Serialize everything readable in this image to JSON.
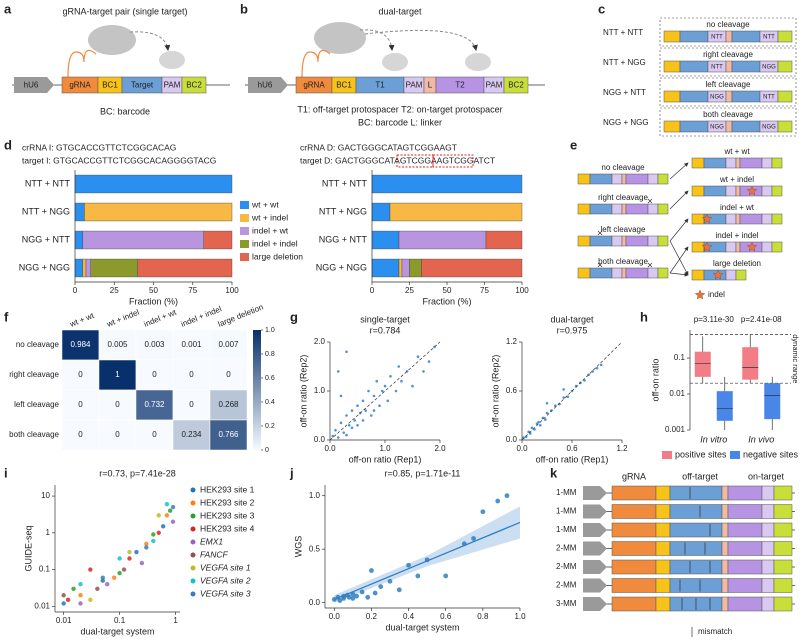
{
  "panels": [
    "a",
    "b",
    "c",
    "d",
    "e",
    "f",
    "g",
    "h",
    "i",
    "j",
    "k"
  ],
  "a": {
    "title": "gRNA-target pair (single target)",
    "parts": [
      "hU6",
      "gRNA",
      "BC1",
      "Target",
      "PAM",
      "BC2"
    ],
    "caption": "BC: barcode"
  },
  "b": {
    "title": "dual-target",
    "parts": [
      "hU6",
      "gRNA",
      "BC1",
      "T1",
      "PAM",
      "L",
      "T2",
      "PAM",
      "BC2"
    ],
    "captions": [
      "T1: off-target protospacer T2: on-target protospacer",
      "BC: barcode L: linker"
    ]
  },
  "c": {
    "rows": [
      {
        "label": "NTT + NTT",
        "caption": "no cleavage",
        "pams": [
          "NTT",
          "NTT"
        ]
      },
      {
        "label": "NTT + NGG",
        "caption": "right cleavage",
        "pams": [
          "NTT",
          "NGG"
        ]
      },
      {
        "label": "NGG + NTT",
        "caption": "left cleavage",
        "pams": [
          "NGG",
          "NTT"
        ]
      },
      {
        "label": "NGG + NGG",
        "caption": "both cleavage",
        "pams": [
          "NGG",
          "NGG"
        ]
      }
    ]
  },
  "d": {
    "sequences": [
      "crRNA I: GTGCACCGTTCTCGGCACAG",
      "target I: GTGCACCGTTCTCGGCACAGGGGTACG",
      "crRNA D: GACTGGGCATAGTCGGAAGT",
      "target D: GACTGGGCATAGTCGGAAGTCGGATCT"
    ]
  },
  "e": {
    "inputs": [
      "no cleavage",
      "right cleavage",
      "left cleavage",
      "both cleavage"
    ],
    "outcomes": [
      "wt + wt",
      "wt + indel",
      "indel + wt",
      "indel + indel",
      "large deletion"
    ],
    "legend": "indel"
  },
  "k": {
    "headers": [
      "gRNA",
      "off-target",
      "on-target"
    ],
    "rows": [
      "1-MM",
      "1-MM",
      "1-MM",
      "2-MM",
      "2-MM",
      "2-MM",
      "3-MM"
    ],
    "legend": "mismatch"
  },
  "chart_data": [
    {
      "type": "bar",
      "orientation": "horizontal",
      "stacked": true,
      "categories": [
        "NTT + NTT",
        "NTT + NGG",
        "NGG + NTT",
        "NGG + NGG"
      ],
      "series": [
        {
          "name": "wt + wt",
          "color": "#2b8ff0",
          "values": [
            100,
            6,
            5,
            5
          ]
        },
        {
          "name": "wt + indel",
          "color": "#f7b844",
          "values": [
            0,
            94,
            0,
            2
          ]
        },
        {
          "name": "indel + wt",
          "color": "#b995e0",
          "values": [
            0,
            0,
            77,
            3
          ]
        },
        {
          "name": "indel + indel",
          "color": "#8c9a2c",
          "values": [
            0,
            0,
            0,
            30
          ]
        },
        {
          "name": "large deletion",
          "color": "#e3644f",
          "values": [
            0,
            0,
            18,
            60
          ]
        }
      ],
      "xlim": [
        0,
        100
      ],
      "xticks": [
        0,
        25,
        50,
        75,
        100
      ],
      "xlabel": "Fraction (%)"
    },
    {
      "type": "bar",
      "orientation": "horizontal",
      "stacked": true,
      "categories": [
        "NTT + NTT",
        "NTT + NGG",
        "NGG + NTT",
        "NGG + NGG"
      ],
      "series": [
        {
          "color": "#2b8ff0",
          "values": [
            100,
            12,
            18,
            18
          ]
        },
        {
          "color": "#f7b844",
          "values": [
            0,
            88,
            0,
            2
          ]
        },
        {
          "color": "#b995e0",
          "values": [
            0,
            0,
            58,
            5
          ]
        },
        {
          "color": "#8c9a2c",
          "values": [
            0,
            0,
            0,
            8
          ]
        },
        {
          "color": "#e3644f",
          "values": [
            0,
            0,
            24,
            67
          ]
        }
      ],
      "xlim": [
        0,
        100
      ],
      "xticks": [
        0,
        25,
        50,
        75,
        100
      ],
      "xlabel": "Fraction (%)"
    },
    {
      "type": "heatmap",
      "rows": [
        "no cleavage",
        "right cleavage",
        "left cleavage",
        "both cleavage"
      ],
      "columns": [
        "wt + wt",
        "wt + indel",
        "indel + wt",
        "indel + indel",
        "large deletion"
      ],
      "values": [
        [
          0.984,
          0.005,
          0.003,
          0.001,
          0.007
        ],
        [
          0,
          1,
          0,
          0,
          0
        ],
        [
          0,
          0,
          0.732,
          0,
          0.268
        ],
        [
          0,
          0,
          0,
          0.234,
          0.766
        ]
      ],
      "clim": [
        0,
        1
      ],
      "cticks": [
        0,
        0.2,
        0.4,
        0.6,
        0.8,
        {
          "value": 1,
          "label": "1.0"
        }
      ],
      "colormap": [
        "#f7fbff",
        "#08306b"
      ]
    },
    {
      "type": "scatter",
      "title": "single-target",
      "subtitle": "r=0.784",
      "color": "#2a7fd4",
      "diagonal": true,
      "x": [
        0.05,
        0.1,
        0.15,
        0.2,
        0.2,
        0.25,
        0.3,
        0.3,
        0.35,
        0.4,
        0.4,
        0.45,
        0.5,
        0.5,
        0.55,
        0.6,
        0.6,
        0.65,
        0.7,
        0.75,
        0.8,
        0.8,
        0.85,
        0.9,
        0.95,
        1.0,
        1.05,
        1.1,
        1.2,
        1.25,
        1.3,
        1.4,
        1.5,
        1.6,
        1.7,
        1.8,
        0.15,
        0.3,
        1.9
      ],
      "values": [
        0.08,
        0.2,
        0.05,
        0.35,
        0.9,
        0.15,
        0.5,
        0.1,
        0.3,
        0.6,
        0.25,
        0.4,
        0.7,
        0.3,
        0.55,
        0.8,
        0.4,
        0.6,
        1.0,
        0.5,
        0.9,
        0.6,
        1.2,
        0.7,
        1.0,
        1.1,
        0.8,
        1.3,
        1.0,
        1.5,
        1.2,
        1.4,
        1.1,
        1.7,
        1.4,
        1.6,
        1.4,
        1.8,
        1.9
      ],
      "xlim": [
        0,
        2
      ],
      "ylim": [
        0,
        2
      ],
      "xticks": [
        {
          "value": 0,
          "label": "0.0"
        },
        {
          "value": 1,
          "label": "1.0"
        },
        {
          "value": 2,
          "label": "2.0"
        }
      ],
      "yticks": [
        {
          "value": 0,
          "label": "0.0"
        },
        {
          "value": 1,
          "label": "1.0"
        },
        {
          "value": 2,
          "label": "2.0"
        }
      ],
      "xlabel": "off-on ratio (Rep1)",
      "ylabel": "off-on ratio (Rep2)"
    },
    {
      "type": "scatter",
      "title": "dual-target",
      "subtitle": "r=0.975",
      "color": "#2a7fd4",
      "diagonal": true,
      "x": [
        0.02,
        0.05,
        0.08,
        0.1,
        0.12,
        0.15,
        0.18,
        0.2,
        0.22,
        0.25,
        0.28,
        0.3,
        0.35,
        0.4,
        0.45,
        0.5,
        0.55,
        0.6,
        0.65,
        0.7,
        0.75,
        0.8,
        0.85,
        0.9,
        0.95,
        0.3,
        0.5
      ],
      "values": [
        0.03,
        0.04,
        0.1,
        0.08,
        0.15,
        0.13,
        0.2,
        0.22,
        0.18,
        0.27,
        0.25,
        0.33,
        0.36,
        0.42,
        0.44,
        0.52,
        0.53,
        0.6,
        0.66,
        0.7,
        0.73,
        0.8,
        0.84,
        0.88,
        0.92,
        0.45,
        0.62
      ],
      "xlim": [
        0,
        1.2
      ],
      "ylim": [
        0,
        1.2
      ],
      "xticks": [
        {
          "value": 0,
          "label": "0.0"
        },
        {
          "value": 0.6,
          "label": "0.6"
        },
        {
          "value": 1.2,
          "label": "1.2"
        }
      ],
      "yticks": [
        {
          "value": 0,
          "label": "0.0"
        },
        {
          "value": 0.6,
          "label": "0.6"
        },
        {
          "value": 1.2,
          "label": "1.2"
        }
      ],
      "xlabel": "off-on ratio (Rep1)",
      "ylabel": "off-on ratio (Rep2)"
    },
    {
      "type": "box",
      "ylog": true,
      "categories": [
        "In vitro",
        "In vivo"
      ],
      "annotations": [
        "p=3.11e-30",
        "p=2.41e-08"
      ],
      "range_label": "dynamic range",
      "range_lines": [
        0.02,
        0.45
      ],
      "series": [
        {
          "name": "positive sites",
          "color": "#f27d86",
          "values": [
            {
              "min": 0.02,
              "q1": 0.03,
              "median": 0.07,
              "q3": 0.15,
              "max": 0.4
            },
            {
              "min": 0.02,
              "q1": 0.025,
              "median": 0.055,
              "q3": 0.2,
              "max": 0.45
            }
          ]
        },
        {
          "name": "negative sites",
          "color": "#4a86e8",
          "values": [
            {
              "min": 0.001,
              "q1": 0.0018,
              "median": 0.004,
              "q3": 0.012,
              "max": 0.03
            },
            {
              "min": 0.001,
              "q1": 0.002,
              "median": 0.009,
              "q3": 0.02,
              "max": 0.03
            }
          ]
        }
      ],
      "ylim": [
        0.001,
        0.6
      ],
      "yticks": [
        0.001,
        0.01,
        0.1
      ],
      "ylabel": "off-on ratio"
    },
    {
      "type": "scatter",
      "title": "r=0.73, p=7.41e-28",
      "xlog": true,
      "ylog": true,
      "xlim": [
        0.007,
        1.2
      ],
      "ylim": [
        0.007,
        20
      ],
      "xticks": [
        0.01,
        0.1,
        1
      ],
      "yticks": [
        0.01,
        0.1,
        1,
        10
      ],
      "xlabel": "dual-target system",
      "ylabel": "GUIDE-seq",
      "series": [
        {
          "name": "HEK293 site 1",
          "color": "#1f77b4",
          "x": [
            0.01,
            0.05,
            0.2,
            0.6
          ],
          "values": [
            0.012,
            0.05,
            0.3,
            1.5
          ]
        },
        {
          "name": "HEK293 site 2",
          "color": "#ff7f0e",
          "x": [
            0.02,
            0.08,
            0.3,
            0.7
          ],
          "values": [
            0.02,
            0.06,
            0.5,
            3
          ]
        },
        {
          "name": "HEK293 site 3",
          "color": "#2ca02c",
          "x": [
            0.015,
            0.1,
            0.4,
            0.8
          ],
          "values": [
            0.03,
            0.08,
            0.9,
            4
          ]
        },
        {
          "name": "HEK293 site 4",
          "color": "#d62728",
          "x": [
            0.012,
            0.03,
            0.15,
            0.5
          ],
          "values": [
            0.015,
            0.1,
            0.2,
            1
          ]
        },
        {
          "name": "EMX1",
          "color": "#9467bd",
          "x": [
            0.02,
            0.06,
            0.25,
            0.9
          ],
          "values": [
            0.012,
            0.04,
            0.15,
            2
          ]
        },
        {
          "name": "FANCF",
          "color": "#8c564b",
          "x": [
            0.01,
            0.04,
            0.12
          ],
          "values": [
            0.02,
            0.03,
            0.1
          ]
        },
        {
          "name": "VEGFA site 1",
          "color": "#bcbd22",
          "x": [
            0.03,
            0.15,
            0.5
          ],
          "values": [
            0.015,
            0.3,
            3
          ]
        },
        {
          "name": "VEGFA site 2",
          "color": "#17becf",
          "x": [
            0.02,
            0.1,
            0.4,
            0.7
          ],
          "values": [
            0.04,
            0.2,
            0.6,
            6
          ]
        },
        {
          "name": "VEGFA site 3",
          "color": "#3b7bbf",
          "x": [
            0.05,
            0.3,
            0.9
          ],
          "values": [
            0.06,
            0.4,
            5
          ]
        }
      ]
    },
    {
      "type": "scatter",
      "title": "r=0.85, p=1.71e-11",
      "color": "#2f7fc1",
      "xlim": [
        -0.05,
        1.0
      ],
      "ylim": [
        -0.05,
        1.1
      ],
      "x": [
        0.0,
        0.02,
        0.03,
        0.05,
        0.05,
        0.07,
        0.08,
        0.1,
        0.1,
        0.12,
        0.15,
        0.18,
        0.2,
        0.22,
        0.25,
        0.3,
        0.35,
        0.4,
        0.45,
        0.5,
        0.6,
        0.7,
        0.75,
        0.8,
        0.88,
        0.93
      ],
      "values": [
        0.03,
        0.05,
        0.02,
        0.06,
        0.04,
        0.07,
        0.05,
        0.04,
        0.08,
        0.06,
        0.1,
        0.05,
        0.3,
        0.09,
        0.15,
        0.2,
        0.12,
        0.35,
        0.25,
        0.4,
        0.25,
        0.55,
        0.6,
        0.85,
        0.95,
        1.0
      ],
      "fit": {
        "x": [
          0,
          0.5,
          1
        ],
        "y": [
          0.03,
          0.39,
          0.75
        ],
        "lower": [
          0.0,
          0.34,
          0.6
        ],
        "upper": [
          0.07,
          0.44,
          0.9
        ]
      },
      "xticks": [
        {
          "value": 0,
          "label": "0.0"
        },
        {
          "value": 0.2,
          "label": "0.2"
        },
        {
          "value": 0.4,
          "label": "0.4"
        },
        {
          "value": 0.6,
          "label": "0.6"
        },
        {
          "value": 0.8,
          "label": "0.8"
        },
        {
          "value": 1,
          "label": "1.0"
        }
      ],
      "yticks": [
        {
          "value": 0,
          "label": "0.0"
        },
        {
          "value": 0.5,
          "label": "0.5"
        },
        {
          "value": 1,
          "label": "1.0"
        }
      ],
      "xlabel": "dual-target system",
      "ylabel": "WGS"
    }
  ]
}
